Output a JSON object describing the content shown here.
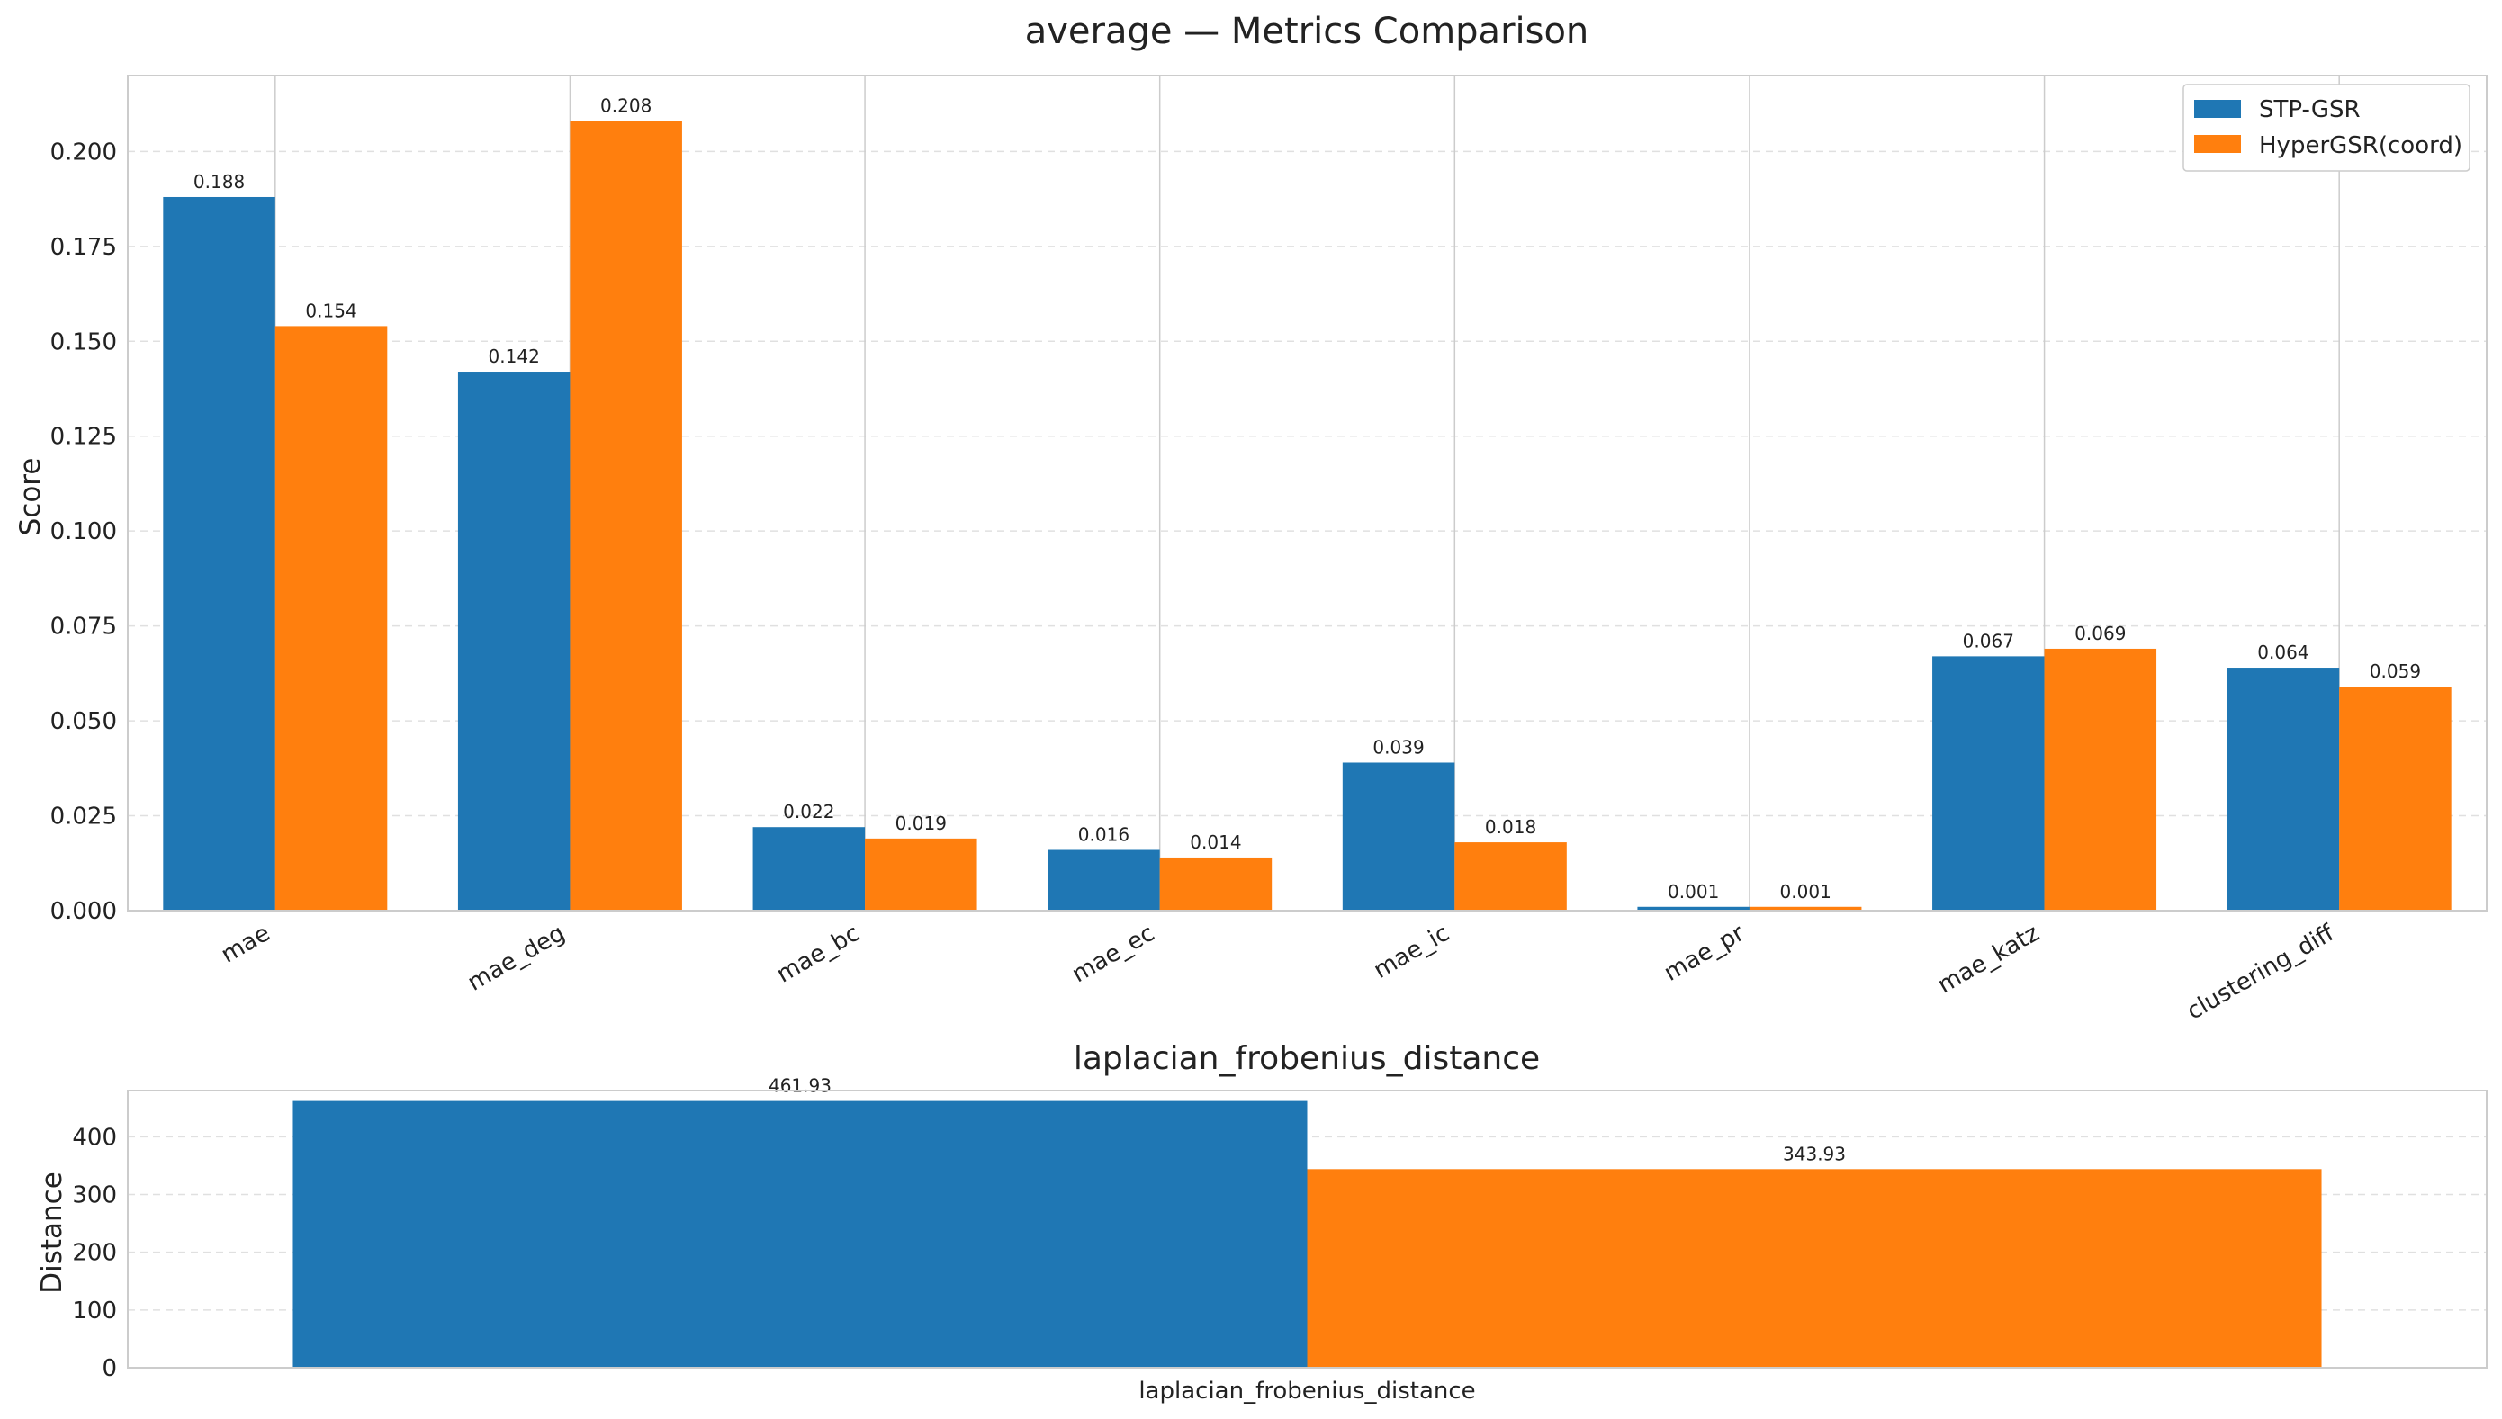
{
  "colors": {
    "series_1": "#1f77b4",
    "series_2": "#ff7f0e",
    "grid": "#e0e0e0",
    "axis": "#cccccc"
  },
  "chart_data": [
    {
      "type": "bar",
      "title": "average — Metrics Comparison",
      "xlabel": "",
      "ylabel": "Score",
      "ylim": [
        0,
        0.22
      ],
      "yticks": [
        "0.000",
        "0.025",
        "0.050",
        "0.075",
        "0.100",
        "0.125",
        "0.150",
        "0.175",
        "0.200"
      ],
      "grid": "on",
      "legend": "top-right",
      "categories": [
        "mae",
        "mae_deg",
        "mae_bc",
        "mae_ec",
        "mae_ic",
        "mae_pr",
        "mae_katz",
        "clustering_diff"
      ],
      "series": [
        {
          "name": "STP-GSR",
          "values": [
            0.188,
            0.142,
            0.022,
            0.016,
            0.039,
            0.001,
            0.067,
            0.064
          ],
          "labels": [
            "0.188",
            "0.142",
            "0.022",
            "0.016",
            "0.039",
            "0.001",
            "0.067",
            "0.064"
          ]
        },
        {
          "name": "HyperGSR(coord)",
          "values": [
            0.154,
            0.208,
            0.019,
            0.014,
            0.018,
            0.001,
            0.069,
            0.059
          ],
          "labels": [
            "0.154",
            "0.208",
            "0.019",
            "0.014",
            "0.018",
            "0.001",
            "0.069",
            "0.059"
          ]
        }
      ]
    },
    {
      "type": "bar",
      "title": "laplacian_frobenius_distance",
      "xlabel": "",
      "ylabel": "Distance",
      "ylim": [
        0,
        480
      ],
      "yticks": [
        "0",
        "100",
        "200",
        "300",
        "400"
      ],
      "grid": "on",
      "categories": [
        "laplacian_frobenius_distance"
      ],
      "series": [
        {
          "name": "STP-GSR",
          "values": [
            461.93
          ],
          "labels": [
            "461.93"
          ]
        },
        {
          "name": "HyperGSR(coord)",
          "values": [
            343.93
          ],
          "labels": [
            "343.93"
          ]
        }
      ]
    }
  ]
}
